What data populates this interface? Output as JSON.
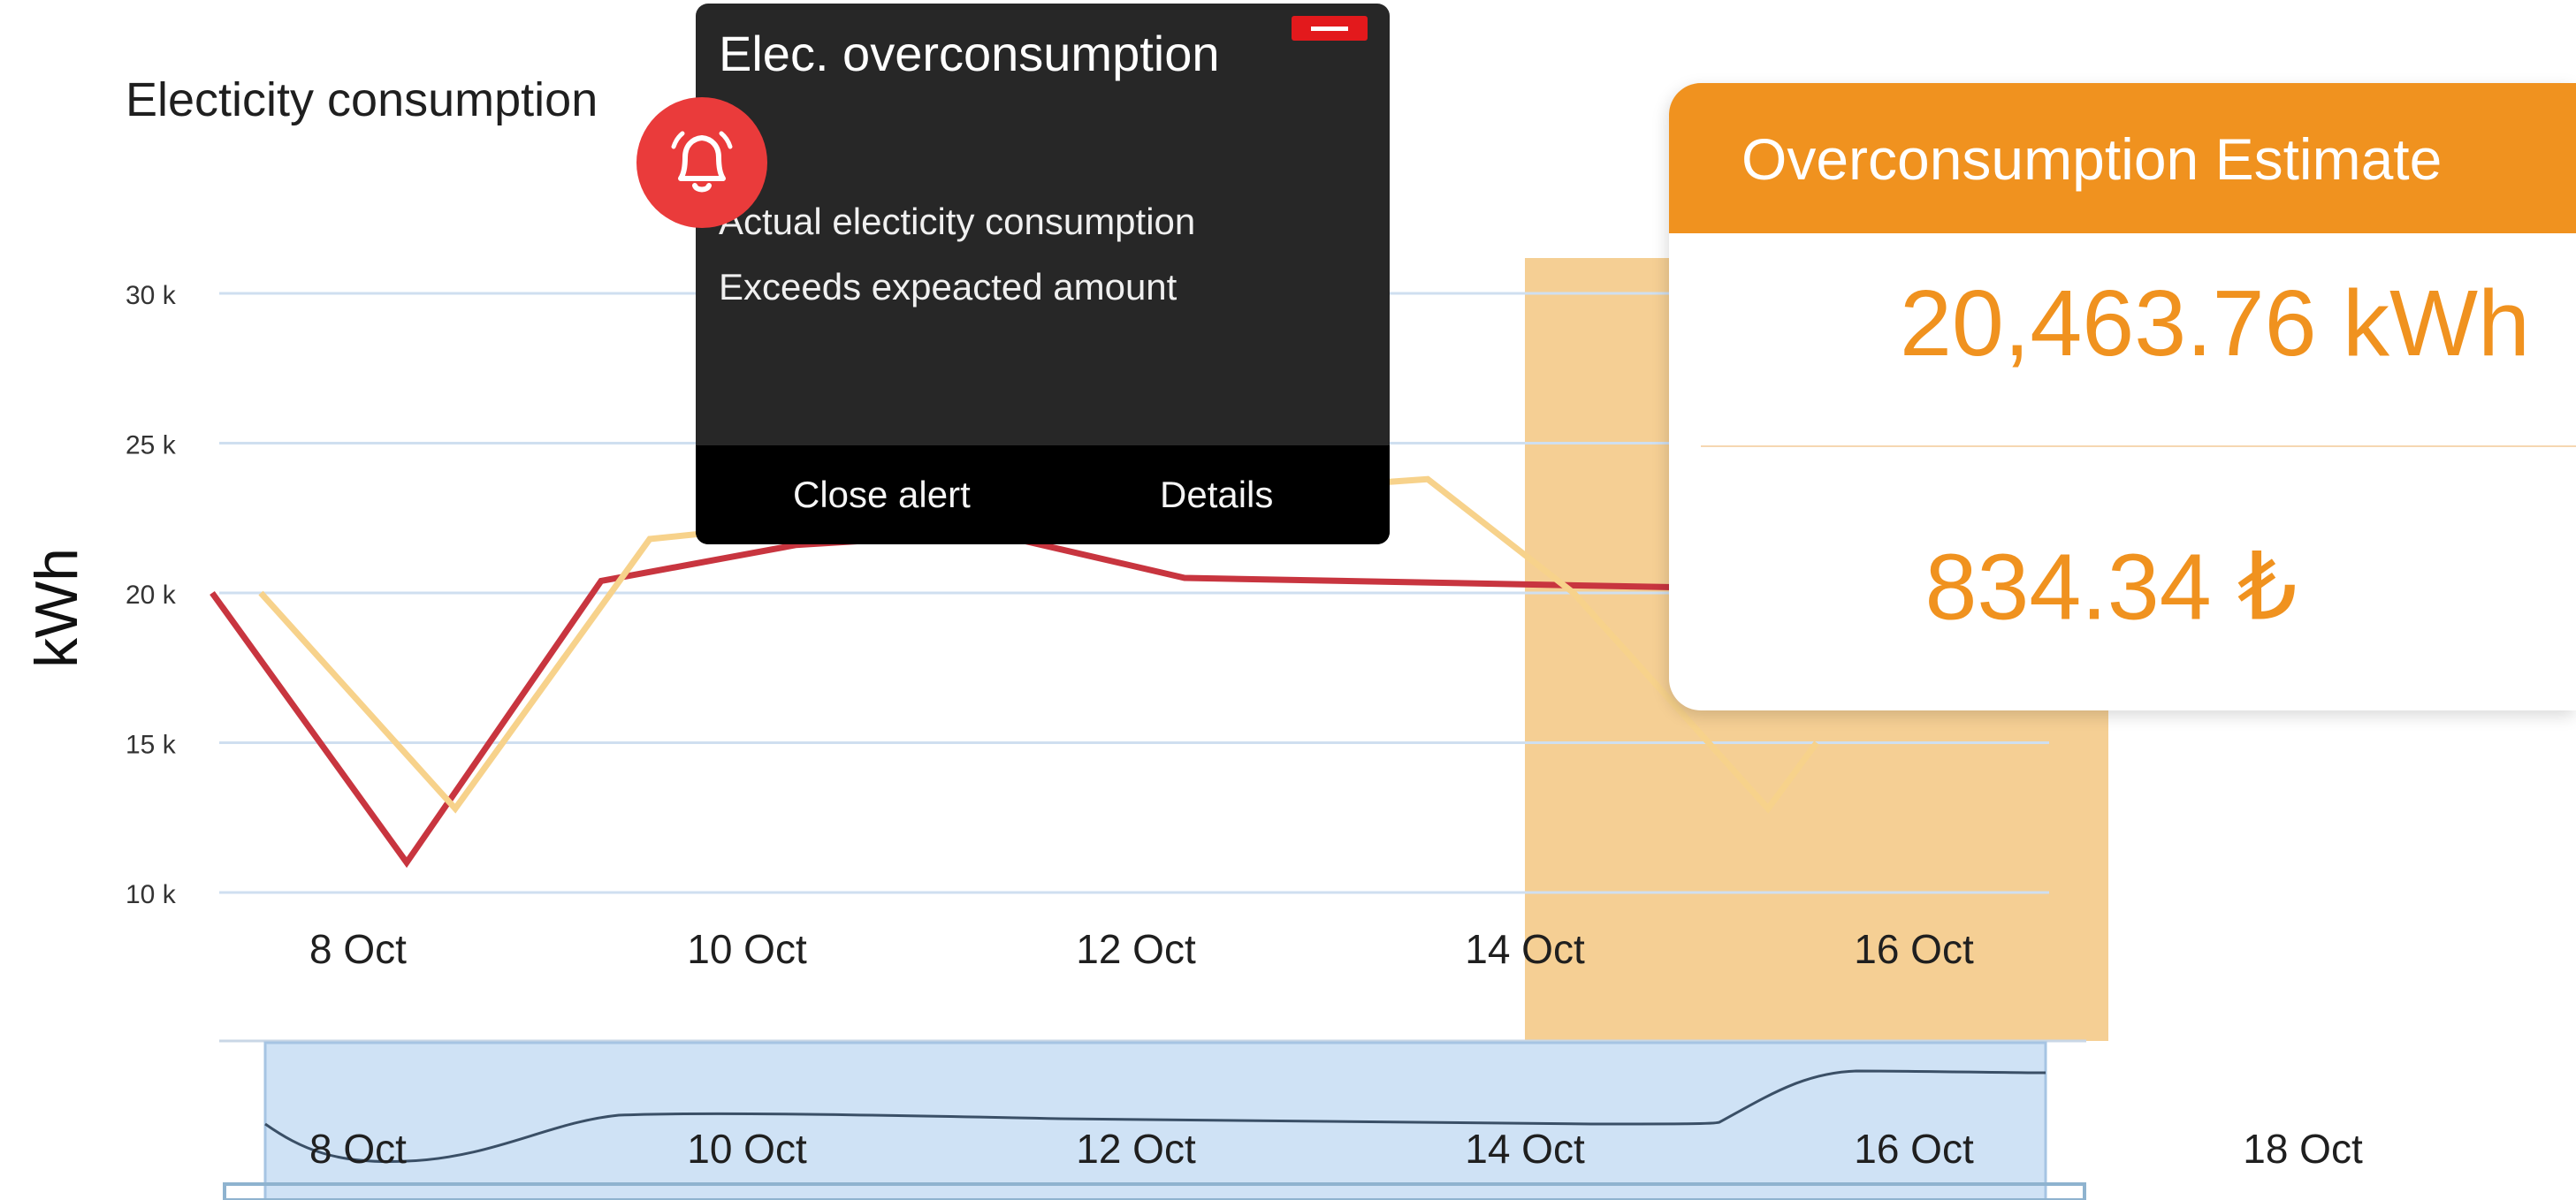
{
  "chart_data": {
    "type": "line",
    "title": "Electicity consumption",
    "ylabel": "kWh",
    "xlabel": "",
    "ylim": [
      10000,
      30000
    ],
    "y_ticks": [
      {
        "value": 10000,
        "label": "10 k"
      },
      {
        "value": 15000,
        "label": "15 k"
      },
      {
        "value": 20000,
        "label": "20 k"
      },
      {
        "value": 25000,
        "label": "25 k"
      },
      {
        "value": 30000,
        "label": "30 k"
      }
    ],
    "x_ticks": [
      "8 Oct",
      "10 Oct",
      "12 Oct",
      "14 Oct",
      "16 Oct"
    ],
    "grid": true,
    "series": [
      {
        "color": "#c8353f",
        "points": [
          {
            "x": "2023-10-07T06:00",
            "y": 20000
          },
          {
            "x": "2023-10-08T06:00",
            "y": 11000
          },
          {
            "x": "2023-10-09T06:00",
            "y": 20400
          },
          {
            "x": "2023-10-10T06:00",
            "y": 21600
          },
          {
            "x": "2023-10-11T06:00",
            "y": 22000
          },
          {
            "x": "2023-10-12T06:00",
            "y": 20500
          },
          {
            "x": "2023-10-15T12:00",
            "y": 20100
          }
        ]
      },
      {
        "color": "#f7d28b",
        "points": [
          {
            "x": "2023-10-07T12:00",
            "y": 20000
          },
          {
            "x": "2023-10-08T12:00",
            "y": 12800
          },
          {
            "x": "2023-10-09T12:00",
            "y": 21800
          },
          {
            "x": "2023-10-10T06:00",
            "y": 22300
          },
          {
            "x": "2023-10-13T12:00",
            "y": 23800
          },
          {
            "x": "2023-10-14T06:00",
            "y": 20000
          },
          {
            "x": "2023-10-15T06:00",
            "y": 12800
          },
          {
            "x": "2023-10-15T12:00",
            "y": 15000
          }
        ]
      }
    ],
    "highlight_range": {
      "from": "2023-10-14T00:00",
      "to": "2023-10-17T00:00",
      "color": "#f5cf94"
    },
    "navigator": {
      "x_ticks": [
        "8 Oct",
        "10 Oct",
        "12 Oct",
        "14 Oct",
        "16 Oct",
        "18 Oct"
      ],
      "selected_color": "#cfe2f5",
      "line_color": "#3a4f66"
    }
  },
  "alert": {
    "title": "Elec. overconsumption",
    "line1": "Actual electicity consumption",
    "line2": "Exceeds expeacted amount",
    "close_label": "Close alert",
    "details_label": "Details",
    "icon": "bell-alert-icon",
    "badge_color": "#ea3b3b"
  },
  "estimate": {
    "title": "Overconsumption Estimate",
    "energy": "20,463.76 kWh",
    "cost": "834.34 ₺",
    "accent": "#f0921f"
  }
}
